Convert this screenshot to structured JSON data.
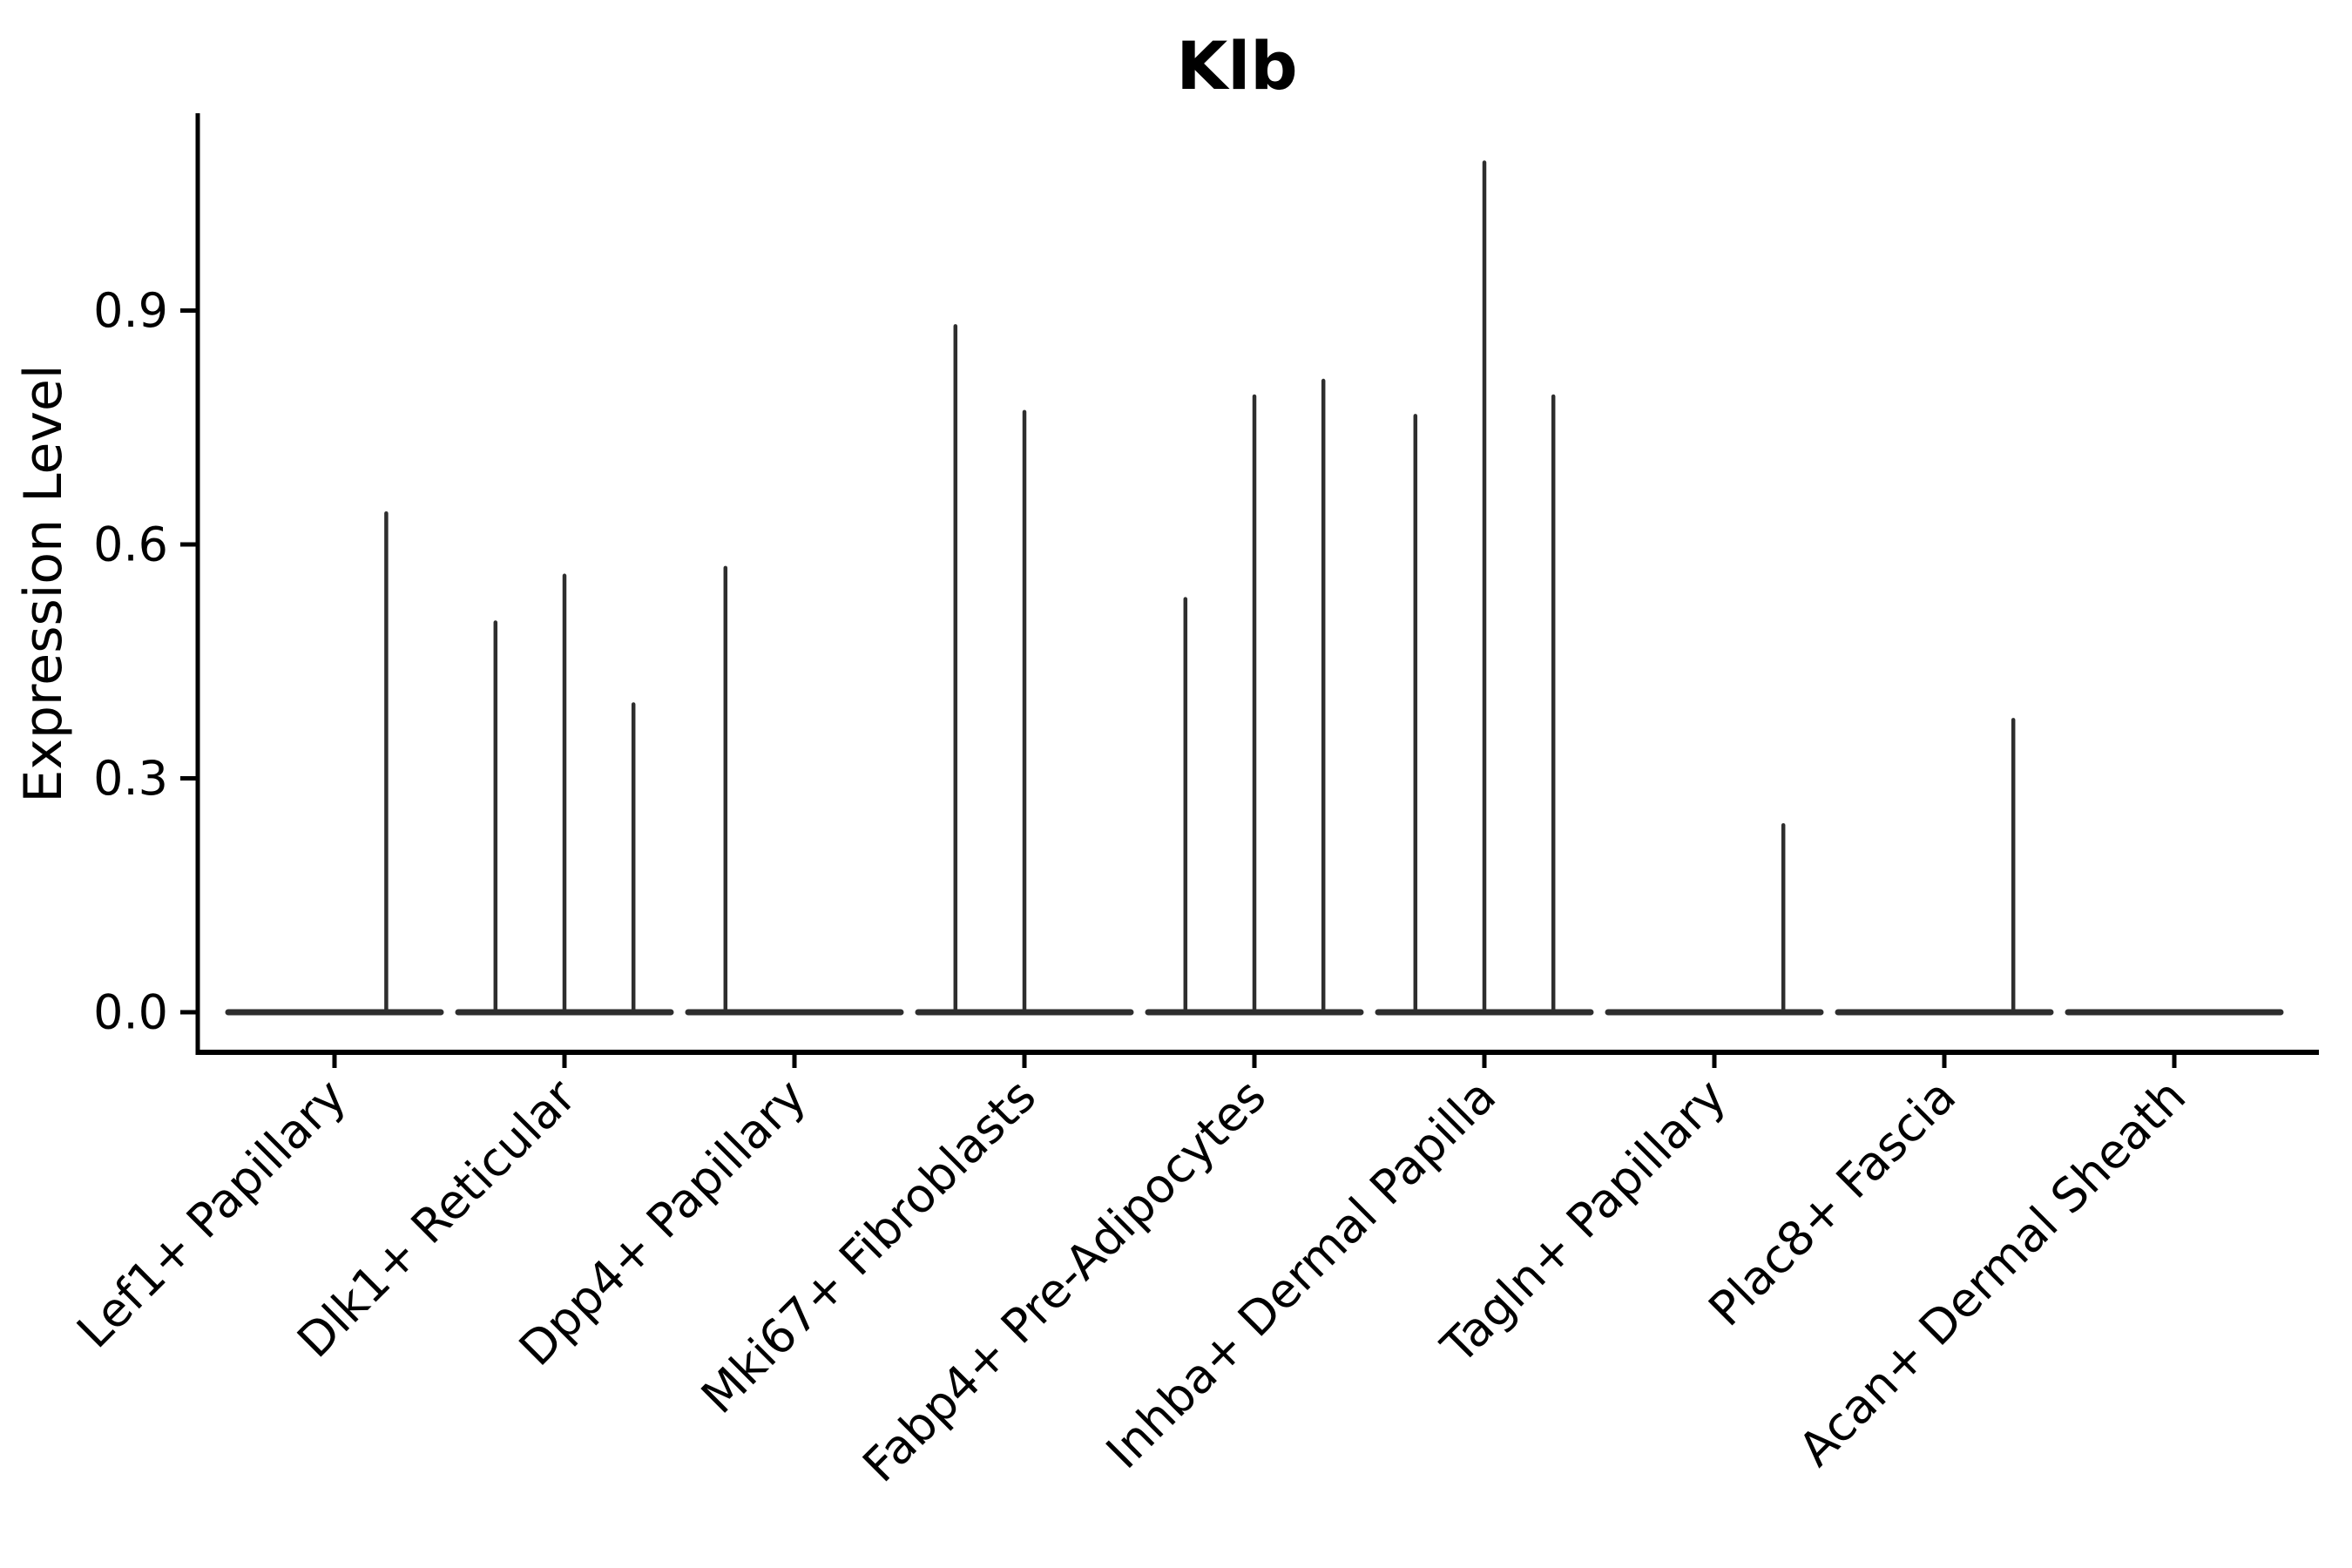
{
  "figure": {
    "background": "#ffffff"
  },
  "chart_data": {
    "type": "violin",
    "title": "Klb",
    "xlabel": "",
    "ylabel": "Expression Level",
    "yticks": [
      0.0,
      0.3,
      0.6,
      0.9
    ],
    "ylim": [
      0,
      1.155
    ],
    "grid": false,
    "legend": "none",
    "violin_line_color": "#2e2e2e",
    "axis_color": "#000000",
    "categories": [
      "Lef1+ Papillary",
      "Dlk1+ Reticular",
      "Dpp4+ Papillary",
      "Mki67+ Fibroblasts",
      "Fabp4+ Pre-Adipocytes",
      "Inhba+ Dermal Papilla",
      "Tagln+ Papillary",
      "Plac8+ Fascia",
      "Acan+ Dermal Sheath"
    ],
    "violins": [
      {
        "category": "Lef1+ Papillary",
        "spikes": [
          {
            "offset": 0.225,
            "max": 0.64
          }
        ]
      },
      {
        "category": "Dlk1+ Reticular",
        "spikes": [
          {
            "offset": -0.3,
            "max": 0.5
          },
          {
            "offset": 0.0,
            "max": 0.56
          },
          {
            "offset": 0.3,
            "max": 0.395
          }
        ]
      },
      {
        "category": "Dpp4+ Papillary",
        "spikes": [
          {
            "offset": -0.3,
            "max": 0.57
          }
        ]
      },
      {
        "category": "Mki67+ Fibroblasts",
        "spikes": [
          {
            "offset": -0.3,
            "max": 0.88
          },
          {
            "offset": 0.0,
            "max": 0.77
          }
        ]
      },
      {
        "category": "Fabp4+ Pre-Adipocytes",
        "spikes": [
          {
            "offset": -0.3,
            "max": 0.53
          },
          {
            "offset": 0.0,
            "max": 0.79
          },
          {
            "offset": 0.3,
            "max": 0.81
          }
        ]
      },
      {
        "category": "Inhba+ Dermal Papilla",
        "spikes": [
          {
            "offset": -0.3,
            "max": 0.765
          },
          {
            "offset": 0.0,
            "max": 1.09
          },
          {
            "offset": 0.3,
            "max": 0.79
          }
        ]
      },
      {
        "category": "Tagln+ Papillary",
        "spikes": [
          {
            "offset": 0.3,
            "max": 0.24
          }
        ]
      },
      {
        "category": "Plac8+ Fascia",
        "spikes": [
          {
            "offset": 0.3,
            "max": 0.375
          }
        ]
      },
      {
        "category": "Acan+ Dermal Sheath",
        "spikes": []
      }
    ],
    "baseline_value": 0.0
  }
}
